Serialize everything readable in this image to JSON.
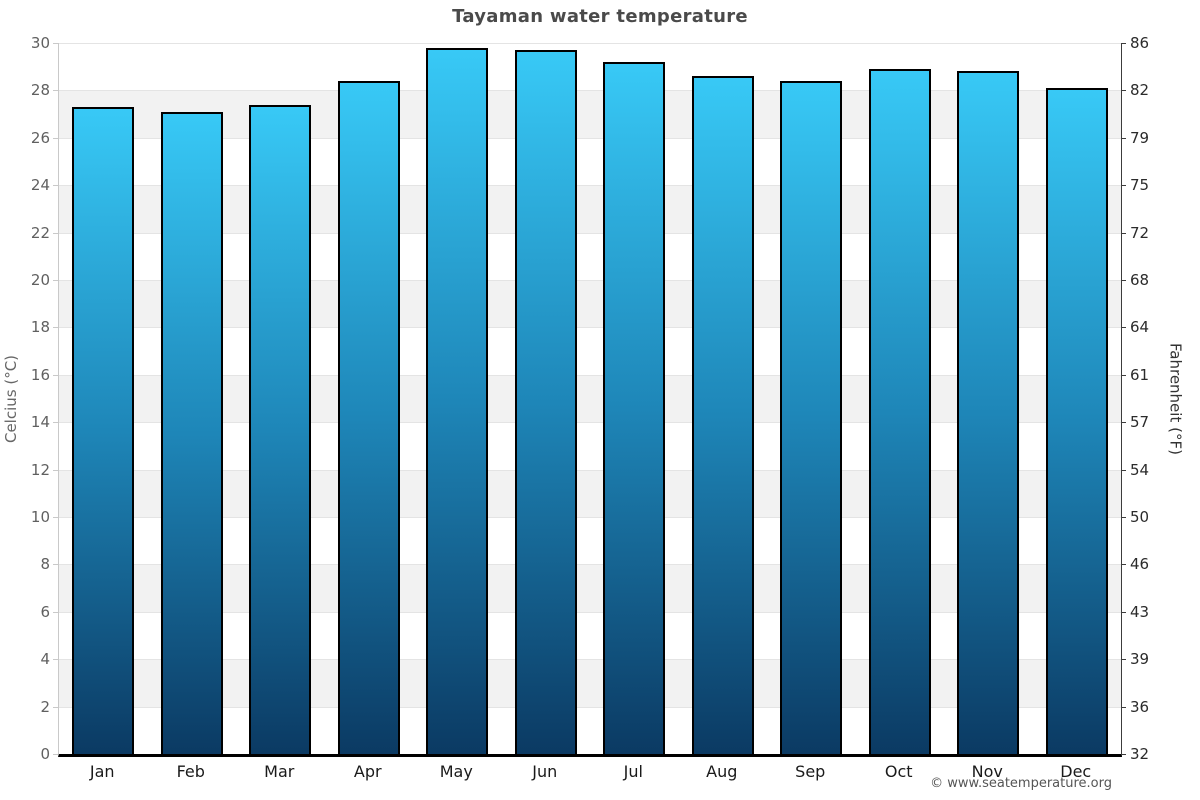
{
  "chart_data": {
    "type": "bar",
    "title": "Tayaman water temperature",
    "categories": [
      "Jan",
      "Feb",
      "Mar",
      "Apr",
      "May",
      "Jun",
      "Jul",
      "Aug",
      "Sep",
      "Oct",
      "Nov",
      "Dec"
    ],
    "values": [
      27.3,
      27.1,
      27.4,
      28.4,
      29.8,
      29.7,
      29.2,
      28.6,
      28.4,
      28.9,
      28.8,
      28.1
    ],
    "ylabel_left": "Celcius (°C)",
    "ylabel_right": "Fahrenheit (°F)",
    "ylim": [
      0,
      30
    ],
    "ytick_step": 2,
    "yticks_left_labels": [
      "0",
      "2",
      "4",
      "6",
      "8",
      "10",
      "12",
      "14",
      "16",
      "18",
      "20",
      "22",
      "24",
      "26",
      "28",
      "30"
    ],
    "yticks_right_labels": [
      "32",
      "36",
      "39",
      "43",
      "46",
      "50",
      "54",
      "57",
      "61",
      "64",
      "68",
      "72",
      "75",
      "79",
      "82",
      "86"
    ],
    "grid": "alternating-bands",
    "legend": "none",
    "footer": "© www.seatemperature.org",
    "colors": {
      "bar_gradient_top": "#38c9f6",
      "bar_gradient_mid": "#1e86b8",
      "bar_gradient_bottom": "#0b3a63",
      "bar_border": "#000000",
      "band_gray": "#f2f2f2",
      "band_white": "#ffffff",
      "title_text": "#4a4a4a"
    }
  }
}
